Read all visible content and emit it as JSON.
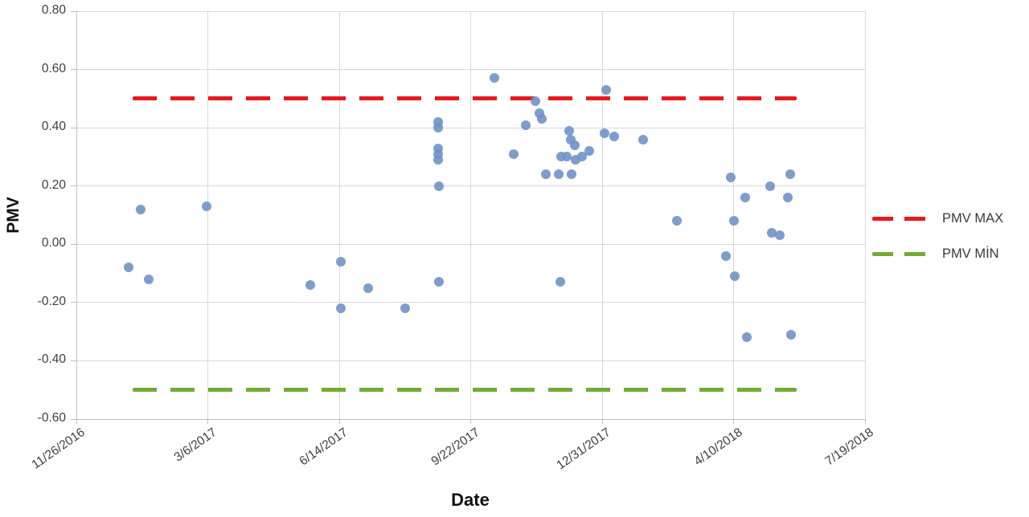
{
  "chart": {
    "y_axis_title": "PMV",
    "x_axis_title": "Date"
  },
  "chart_data": {
    "type": "scatter",
    "title": "",
    "xlabel": "Date",
    "ylabel": "PMV",
    "ylim": [
      -0.6,
      0.8
    ],
    "grid": true,
    "legend_position": "right",
    "x_range": [
      "11/26/2016",
      "7/19/2018"
    ],
    "xticks": [
      "11/26/2016",
      "3/6/2017",
      "6/14/2017",
      "9/22/2017",
      "12/31/2017",
      "4/10/2018",
      "7/19/2018"
    ],
    "ytick_values": [
      0.8,
      0.6,
      0.4,
      0.2,
      0.0,
      -0.2,
      -0.4,
      -0.6
    ],
    "ytick_labels": [
      "0.80",
      "0.60",
      "0.40",
      "0.20",
      "0.00",
      "-0.20",
      "-0.40",
      "-0.60"
    ],
    "series": [
      {
        "name": "PMV MAX",
        "type": "dashed-line",
        "color": "#e8191f",
        "y": 0.5,
        "x_start": "1/8/2017",
        "x_end": "5/28/2018"
      },
      {
        "name": "PMV MİN",
        "type": "dashed-line",
        "color": "#72ac34",
        "y": -0.5,
        "x_start": "1/8/2017",
        "x_end": "5/28/2018"
      },
      {
        "name": "PMV",
        "type": "scatter",
        "color": "#6f92c6",
        "points": [
          [
            "1/5/2017",
            -0.08
          ],
          [
            "1/14/2017",
            0.12
          ],
          [
            "1/20/2017",
            -0.12
          ],
          [
            "3/5/2017",
            0.13
          ],
          [
            "5/23/2017",
            -0.14
          ],
          [
            "6/15/2017",
            -0.06
          ],
          [
            "6/15/2017",
            -0.22
          ],
          [
            "7/6/2017",
            -0.15
          ],
          [
            "8/3/2017",
            -0.22
          ],
          [
            "8/28/2017",
            0.42
          ],
          [
            "8/28/2017",
            0.4
          ],
          [
            "8/28/2017",
            0.33
          ],
          [
            "8/28/2017",
            0.31
          ],
          [
            "8/28/2017",
            0.29
          ],
          [
            "8/29/2017",
            0.2
          ],
          [
            "8/29/2017",
            -0.13
          ],
          [
            "10/10/2017",
            0.57
          ],
          [
            "10/25/2017",
            0.31
          ],
          [
            "11/3/2017",
            0.41
          ],
          [
            "11/10/2017",
            0.49
          ],
          [
            "11/13/2017",
            0.45
          ],
          [
            "11/15/2017",
            0.43
          ],
          [
            "11/18/2017",
            0.24
          ],
          [
            "11/28/2017",
            0.24
          ],
          [
            "11/29/2017",
            -0.13
          ],
          [
            "11/30/2017",
            0.3
          ],
          [
            "12/4/2017",
            0.3
          ],
          [
            "12/6/2017",
            0.39
          ],
          [
            "12/7/2017",
            0.36
          ],
          [
            "12/8/2017",
            0.24
          ],
          [
            "12/10/2017",
            0.34
          ],
          [
            "12/11/2017",
            0.29
          ],
          [
            "12/16/2017",
            0.3
          ],
          [
            "12/21/2017",
            0.32
          ],
          [
            "1/2/2018",
            0.38
          ],
          [
            "1/3/2018",
            0.53
          ],
          [
            "1/9/2018",
            0.37
          ],
          [
            "1/31/2018",
            0.36
          ],
          [
            "2/26/2018",
            0.08
          ],
          [
            "4/4/2018",
            -0.04
          ],
          [
            "4/8/2018",
            0.23
          ],
          [
            "4/10/2018",
            0.08
          ],
          [
            "4/11/2018",
            -0.11
          ],
          [
            "4/19/2018",
            0.16
          ],
          [
            "4/20/2018",
            -0.32
          ],
          [
            "5/8/2018",
            0.2
          ],
          [
            "5/9/2018",
            0.04
          ],
          [
            "5/15/2018",
            0.03
          ],
          [
            "5/21/2018",
            0.16
          ],
          [
            "5/23/2018",
            0.24
          ],
          [
            "5/24/2018",
            -0.31
          ]
        ]
      }
    ]
  }
}
